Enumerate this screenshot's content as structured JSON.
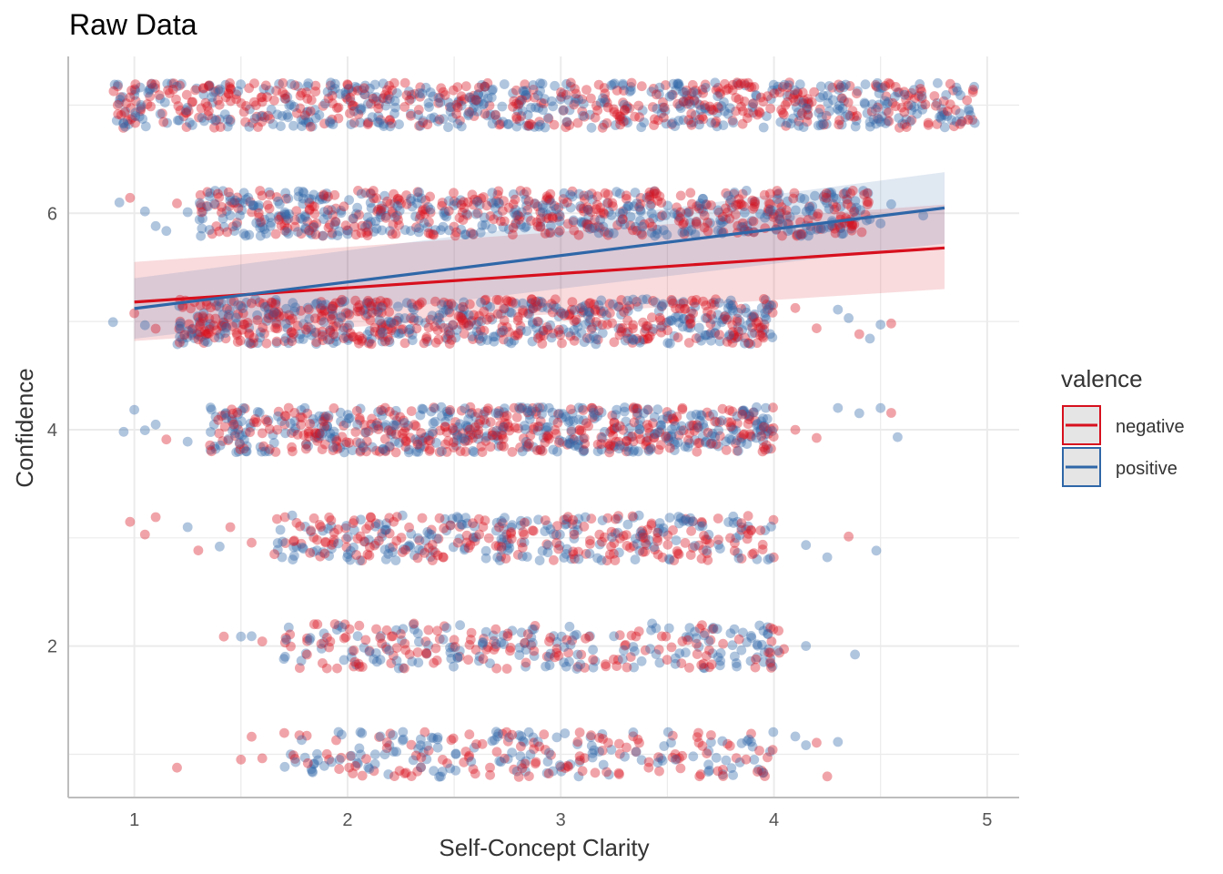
{
  "chart_data": {
    "type": "scatter",
    "title": "Raw Data",
    "xlabel": "Self-Concept Clarity",
    "ylabel": "Confidence",
    "xlim": [
      0.69,
      5.15
    ],
    "ylim": [
      0.6,
      7.45
    ],
    "x_ticks": [
      1,
      2,
      3,
      4,
      5
    ],
    "y_ticks": [
      2,
      4,
      6
    ],
    "grid": true,
    "legend": {
      "title": "valence",
      "position": "right",
      "entries": [
        "negative",
        "positive"
      ]
    },
    "series": [
      {
        "name": "negative",
        "color": "#D7101E",
        "regression": {
          "x": [
            1,
            4.8
          ],
          "y": [
            5.18,
            5.68
          ],
          "ci_lower": [
            4.82,
            5.3
          ],
          "ci_upper": [
            5.55,
            6.08
          ]
        }
      },
      {
        "name": "positive",
        "color": "#2F67A8",
        "regression": {
          "x": [
            1,
            4.8
          ],
          "y": [
            5.12,
            6.05
          ],
          "ci_lower": [
            4.84,
            5.72
          ],
          "ci_upper": [
            5.4,
            6.38
          ]
        }
      }
    ],
    "point_rows": [
      {
        "y": 7,
        "x_min": 0.9,
        "x_max": 4.95,
        "density": 1.0,
        "stragglers": []
      },
      {
        "y": 6,
        "x_min": 1.3,
        "x_max": 4.45,
        "density": 0.85,
        "stragglers": [
          0.93,
          0.98,
          1.05,
          1.1,
          1.15,
          1.2,
          1.25,
          4.5,
          4.55,
          4.7
        ]
      },
      {
        "y": 5,
        "x_min": 1.2,
        "x_max": 4.0,
        "density": 0.85,
        "stragglers": [
          0.9,
          1.0,
          1.05,
          1.1,
          4.1,
          4.2,
          4.3,
          4.35,
          4.4,
          4.45,
          4.5,
          4.55
        ]
      },
      {
        "y": 4,
        "x_min": 1.35,
        "x_max": 4.0,
        "density": 0.8,
        "stragglers": [
          0.95,
          1.0,
          1.05,
          1.1,
          1.15,
          1.25,
          4.1,
          4.2,
          4.3,
          4.4,
          4.5,
          4.55,
          4.58
        ]
      },
      {
        "y": 3,
        "x_min": 1.65,
        "x_max": 4.0,
        "density": 0.45,
        "stragglers": [
          0.98,
          1.05,
          1.1,
          1.25,
          1.3,
          1.4,
          1.45,
          1.55,
          4.15,
          4.25,
          4.35,
          4.48
        ]
      },
      {
        "y": 2,
        "x_min": 1.7,
        "x_max": 4.05,
        "density": 0.35,
        "stragglers": [
          1.42,
          1.5,
          1.55,
          1.6,
          4.15,
          4.38
        ]
      },
      {
        "y": 1,
        "x_min": 1.7,
        "x_max": 4.0,
        "density": 0.3,
        "stragglers": [
          1.2,
          1.5,
          1.55,
          1.6,
          4.1,
          4.15,
          4.2,
          4.25,
          4.3
        ]
      }
    ]
  }
}
